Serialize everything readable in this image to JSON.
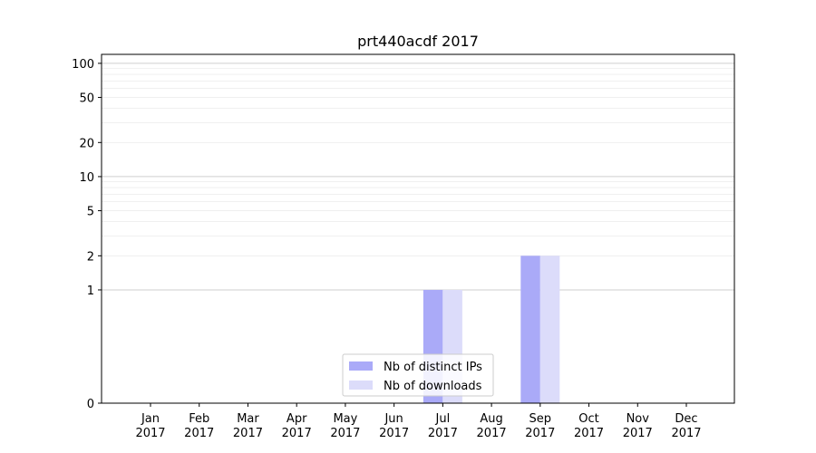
{
  "chart_data": {
    "type": "bar",
    "title": "prt440acdf 2017",
    "xlabel": "",
    "ylabel": "",
    "categories": [
      "Jan\n2017",
      "Feb\n2017",
      "Mar\n2017",
      "Apr\n2017",
      "May\n2017",
      "Jun\n2017",
      "Jul\n2017",
      "Aug\n2017",
      "Sep\n2017",
      "Oct\n2017",
      "Nov\n2017",
      "Dec\n2017"
    ],
    "series": [
      {
        "name": "Nb of distinct IPs",
        "color": "#aaaaf8",
        "values": [
          0,
          0,
          0,
          0,
          0,
          0,
          1,
          0,
          2,
          0,
          0,
          0
        ]
      },
      {
        "name": "Nb of downloads",
        "color": "#dcdcfa",
        "values": [
          0,
          0,
          0,
          0,
          0,
          0,
          1,
          0,
          2,
          0,
          0,
          0
        ]
      }
    ],
    "y_scale": "symlog",
    "ylim": [
      0,
      120
    ],
    "y_ticks": [
      0,
      1,
      2,
      5,
      10,
      20,
      50,
      100
    ],
    "y_tick_labels": [
      "0",
      "1",
      "2",
      "5",
      "10",
      "20",
      "50",
      "100"
    ],
    "grid": true,
    "legend_position": "bottom-center"
  }
}
